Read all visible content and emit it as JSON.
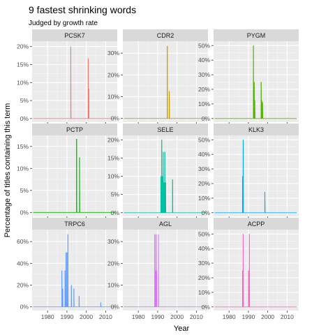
{
  "chart_data": {
    "type": "line",
    "title": "9 fastest shrinking words",
    "subtitle": "Judged by growth rate",
    "xlabel": "Year",
    "ylabel": "Percentage of titles containing this term",
    "xlim": [
      1972,
      2016
    ],
    "x_ticks": [
      1980,
      1990,
      2000,
      2010
    ],
    "x_tick_labels": [
      "1980",
      "1990",
      "2000",
      "2010"
    ],
    "grid": true,
    "legend": "none",
    "panels": [
      {
        "name": "PCSK7",
        "color": "#F8766D",
        "ylim": [
          -1,
          21.5
        ],
        "y_ticks": [
          0,
          5,
          10,
          15,
          20
        ],
        "y_tick_labels": [
          "0%",
          "5%",
          "10%",
          "15%",
          "20%"
        ],
        "points": [
          [
            1992,
            20
          ],
          [
            2001,
            16.7
          ],
          [
            2001.3,
            8.3
          ]
        ]
      },
      {
        "name": "CDR2",
        "color": "#C49A00",
        "ylim": [
          -1.7,
          35.5
        ],
        "y_ticks": [
          0,
          10,
          20,
          30
        ],
        "y_tick_labels": [
          "0%",
          "10%",
          "20%",
          "30%"
        ],
        "points": [
          [
            1995,
            33.3
          ],
          [
            1996,
            12.5
          ]
        ]
      },
      {
        "name": "PYGM",
        "color": "#53B400",
        "ylim": [
          -2.5,
          53
        ],
        "y_ticks": [
          0,
          10,
          20,
          30,
          40,
          50
        ],
        "y_tick_labels": [
          "0%",
          "10%",
          "20%",
          "30%",
          "40%",
          "50%"
        ],
        "points": [
          [
            1992.6,
            50
          ],
          [
            1993,
            25
          ],
          [
            1993.3,
            12.5
          ],
          [
            1996.6,
            25
          ],
          [
            1996.9,
            12.5
          ],
          [
            1997.3,
            11.1
          ]
        ]
      },
      {
        "name": "PCTP",
        "color": "#00B300",
        "ylim": [
          -0.9,
          17.5
        ],
        "y_ticks": [
          0,
          5,
          10,
          15
        ],
        "y_tick_labels": [
          "0%",
          "5%",
          "10%",
          "15%"
        ],
        "points": [
          [
            1995,
            16.7
          ],
          [
            1996.5,
            12.5
          ]
        ]
      },
      {
        "name": "SELE",
        "color": "#00BFA0",
        "ylim": [
          -1,
          21.2
        ],
        "y_ticks": [
          0,
          5,
          10,
          15,
          20
        ],
        "y_tick_labels": [
          "0%",
          "5%",
          "10%",
          "15%",
          "20%"
        ],
        "points": [
          [
            1991.7,
            10
          ],
          [
            1992.1,
            20
          ],
          [
            1992.5,
            10
          ],
          [
            1992.9,
            16.7
          ],
          [
            1993.3,
            8.3
          ],
          [
            1993.7,
            16.7
          ],
          [
            1994.1,
            8.3
          ],
          [
            1997.7,
            9.1
          ]
        ]
      },
      {
        "name": "KLK3",
        "color": "#00A9FF",
        "ylim": [
          -2.5,
          53
        ],
        "y_ticks": [
          0,
          10,
          20,
          30,
          40,
          50
        ],
        "y_tick_labels": [
          "0%",
          "10%",
          "20%",
          "30%",
          "40%",
          "50%"
        ],
        "points": [
          [
            1987,
            25
          ],
          [
            1987.3,
            50
          ],
          [
            1998.5,
            14.3
          ]
        ]
      },
      {
        "name": "TRPC6",
        "color": "#619CFF",
        "ylim": [
          -3.4,
          71
        ],
        "y_ticks": [
          0,
          20,
          40,
          60
        ],
        "y_tick_labels": [
          "0%",
          "20%",
          "40%",
          "60%"
        ],
        "points": [
          [
            1987.4,
            33.3
          ],
          [
            1987.8,
            16.7
          ],
          [
            1989,
            33.3
          ],
          [
            1989.5,
            50
          ],
          [
            1990,
            50
          ],
          [
            1990.5,
            66.7
          ],
          [
            1992.3,
            20
          ],
          [
            1993.6,
            16.7
          ],
          [
            1996.3,
            10
          ],
          [
            2007.5,
            4
          ]
        ]
      },
      {
        "name": "AGL",
        "color": "#DB72FB",
        "ylim": [
          -1.7,
          35.5
        ],
        "y_ticks": [
          0,
          10,
          20,
          30
        ],
        "y_tick_labels": [
          "0%",
          "10%",
          "20%",
          "30%"
        ],
        "points": [
          [
            1988.5,
            33.3
          ],
          [
            1988.8,
            16.7
          ],
          [
            1989.2,
            33.3
          ],
          [
            1989.5,
            16.7
          ],
          [
            1990.4,
            33.3
          ]
        ]
      },
      {
        "name": "ACPP",
        "color": "#FF61C3",
        "ylim": [
          -2.5,
          53
        ],
        "y_ticks": [
          0,
          10,
          20,
          30,
          40,
          50
        ],
        "y_tick_labels": [
          "0%",
          "10%",
          "20%",
          "30%",
          "40%",
          "50%"
        ],
        "points": [
          [
            1987,
            25
          ],
          [
            1987.3,
            50
          ],
          [
            1990.1,
            25
          ],
          [
            1990.5,
            50
          ]
        ]
      }
    ]
  }
}
